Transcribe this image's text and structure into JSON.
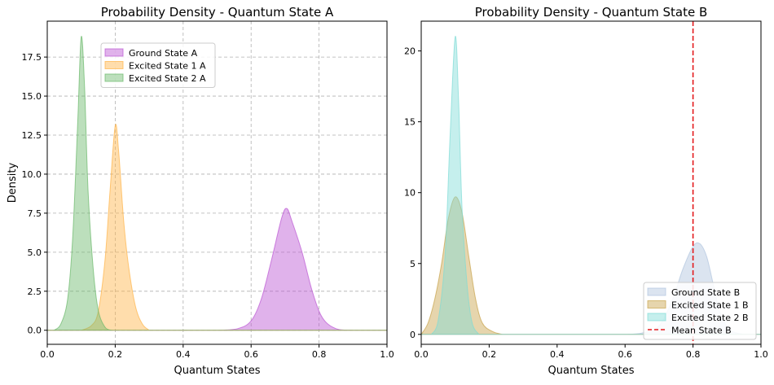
{
  "chart_data": [
    {
      "type": "area",
      "title": "Probability Density - Quantum State A",
      "xlabel": "Quantum States",
      "ylabel": "Density",
      "xlim": [
        0,
        1
      ],
      "ylim": [
        -0.9,
        19.8
      ],
      "xticks": [
        0.0,
        0.2,
        0.4,
        0.6,
        0.8,
        1.0
      ],
      "xtick_labels": [
        "0.0",
        "0.2",
        "0.4",
        "0.6",
        "0.8",
        "1.0"
      ],
      "yticks": [
        0.0,
        2.5,
        5.0,
        7.5,
        10.0,
        12.5,
        15.0,
        17.5
      ],
      "ytick_labels": [
        "0.0",
        "2.5",
        "5.0",
        "7.5",
        "10.0",
        "12.5",
        "15.0",
        "17.5"
      ],
      "grid": true,
      "legend_position": "upper-left",
      "series": [
        {
          "name": "Ground State A",
          "color": "#ba55d3",
          "peak_x": 0.7,
          "peak_y": 7.8,
          "points": [
            [
              0.5,
              0
            ],
            [
              0.56,
              0.1
            ],
            [
              0.6,
              0.6
            ],
            [
              0.63,
              2.0
            ],
            [
              0.66,
              4.5
            ],
            [
              0.69,
              7.2
            ],
            [
              0.705,
              7.8
            ],
            [
              0.72,
              7.0
            ],
            [
              0.75,
              5.0
            ],
            [
              0.78,
              2.5
            ],
            [
              0.81,
              0.8
            ],
            [
              0.85,
              0.1
            ],
            [
              0.9,
              0
            ]
          ]
        },
        {
          "name": "Excited State 1 A",
          "color": "#ffb347",
          "peak_x": 0.2,
          "peak_y": 13.1,
          "points": [
            [
              0.1,
              0
            ],
            [
              0.13,
              0.3
            ],
            [
              0.15,
              1.2
            ],
            [
              0.17,
              4.5
            ],
            [
              0.185,
              9.0
            ],
            [
              0.2,
              13.1
            ],
            [
              0.21,
              11.5
            ],
            [
              0.225,
              7.0
            ],
            [
              0.24,
              4.0
            ],
            [
              0.26,
              1.5
            ],
            [
              0.28,
              0.4
            ],
            [
              0.3,
              0
            ]
          ]
        },
        {
          "name": "Excited State 2 A",
          "color": "#6ab86a",
          "peak_x": 0.1,
          "peak_y": 18.8,
          "points": [
            [
              0.02,
              0
            ],
            [
              0.04,
              0.4
            ],
            [
              0.06,
              2.0
            ],
            [
              0.075,
              6.0
            ],
            [
              0.09,
              13.5
            ],
            [
              0.1,
              18.8
            ],
            [
              0.11,
              15.5
            ],
            [
              0.12,
              9.0
            ],
            [
              0.135,
              4.0
            ],
            [
              0.15,
              1.3
            ],
            [
              0.17,
              0.2
            ],
            [
              0.19,
              0
            ]
          ]
        }
      ]
    },
    {
      "type": "area",
      "title": "Probability Density - Quantum State B",
      "xlabel": "Quantum States",
      "ylabel": "",
      "xlim": [
        0,
        1
      ],
      "ylim": [
        -0.7,
        22.1
      ],
      "xticks": [
        0.0,
        0.2,
        0.4,
        0.6,
        0.8,
        1.0
      ],
      "xtick_labels": [
        "0.0",
        "0.2",
        "0.4",
        "0.6",
        "0.8",
        "1.0"
      ],
      "yticks": [
        0,
        5,
        10,
        15,
        20
      ],
      "ytick_labels": [
        "0",
        "5",
        "10",
        "15",
        "20"
      ],
      "grid": false,
      "legend_position": "lower-right",
      "mean_line": {
        "name": "Mean State B",
        "x": 0.8,
        "color": "#e31a1c"
      },
      "series": [
        {
          "name": "Ground State B",
          "color": "#b0c4de",
          "peak_x": 0.81,
          "peak_y": 6.4,
          "points": [
            [
              0.6,
              0
            ],
            [
              0.65,
              0.1
            ],
            [
              0.7,
              0.6
            ],
            [
              0.74,
              2.5
            ],
            [
              0.77,
              4.6
            ],
            [
              0.8,
              6.2
            ],
            [
              0.82,
              6.4
            ],
            [
              0.84,
              5.5
            ],
            [
              0.86,
              3.5
            ],
            [
              0.88,
              1.5
            ],
            [
              0.91,
              0.3
            ],
            [
              0.95,
              0
            ]
          ]
        },
        {
          "name": "Excited State 1 B",
          "color": "#c8a24a",
          "peak_x": 0.105,
          "peak_y": 9.7,
          "points": [
            [
              0.0,
              0
            ],
            [
              0.02,
              0.8
            ],
            [
              0.04,
              2.5
            ],
            [
              0.06,
              5.0
            ],
            [
              0.08,
              8.2
            ],
            [
              0.1,
              9.7
            ],
            [
              0.12,
              8.6
            ],
            [
              0.14,
              5.5
            ],
            [
              0.16,
              2.5
            ],
            [
              0.18,
              0.8
            ],
            [
              0.21,
              0.2
            ],
            [
              0.24,
              0
            ]
          ]
        },
        {
          "name": "Excited State 2 B",
          "color": "#7fdcd6",
          "peak_x": 0.1,
          "peak_y": 21.0,
          "points": [
            [
              0.03,
              0
            ],
            [
              0.05,
              1.0
            ],
            [
              0.07,
              5.5
            ],
            [
              0.085,
              14.0
            ],
            [
              0.1,
              21.0
            ],
            [
              0.11,
              16.5
            ],
            [
              0.12,
              9.0
            ],
            [
              0.135,
              3.5
            ],
            [
              0.15,
              0.8
            ],
            [
              0.17,
              0
            ]
          ]
        }
      ]
    }
  ]
}
